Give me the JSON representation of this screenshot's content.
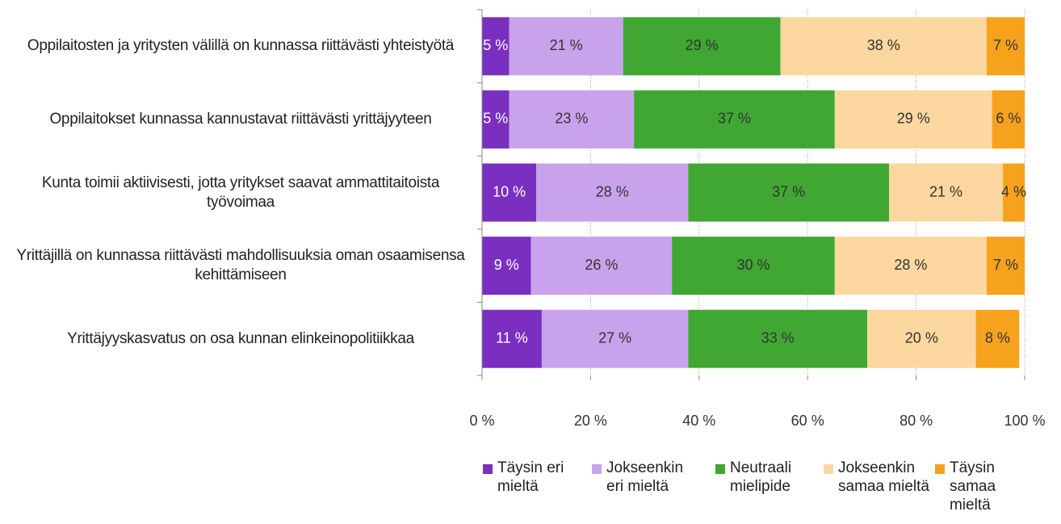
{
  "chart_data": {
    "type": "stacked-barh",
    "categories": [
      "Oppilaitosten ja yritysten välillä on kunnassa riittävästi yhteistyötä",
      "Oppilaitokset kunnassa kannustavat riittävästi yrittäjyyteen",
      "Kunta toimii aktiivisesti, jotta yritykset saavat ammattitaitoista työvoimaa",
      "Yrittäjillä on kunnassa riittävästi mahdollisuuksia oman osaamisensa kehittämiseen",
      "Yrittäjyyskasvatus on osa kunnan elinkeinopolitiikkaa"
    ],
    "series": [
      {
        "name": "Täysin eri mieltä",
        "color": "#7a2fc0",
        "values": [
          5,
          5,
          10,
          9,
          11
        ],
        "value_labels": [
          "5 %",
          "5 %",
          "10 %",
          "9 %",
          "11 %"
        ]
      },
      {
        "name": "Jokseenkin eri mieltä",
        "color": "#c8a2ea",
        "values": [
          21,
          23,
          28,
          26,
          27
        ],
        "value_labels": [
          "21 %",
          "23 %",
          "28 %",
          "26 %",
          "27 %"
        ]
      },
      {
        "name": "Neutraali mielipide",
        "color": "#40a733",
        "values": [
          29,
          37,
          37,
          30,
          33
        ],
        "value_labels": [
          "29 %",
          "37 %",
          "37 %",
          "30 %",
          "33 %"
        ]
      },
      {
        "name": "Jokseenkin samaa mieltä",
        "color": "#fcd79f",
        "values": [
          38,
          29,
          21,
          28,
          20
        ],
        "value_labels": [
          "38 %",
          "29 %",
          "21 %",
          "28 %",
          "20 %"
        ]
      },
      {
        "name": "Täysin samaa mieltä",
        "color": "#f6a21d",
        "values": [
          7,
          6,
          4,
          7,
          8
        ],
        "value_labels": [
          "7 %",
          "6 %",
          "4 %",
          "7 %",
          "8 %"
        ]
      }
    ],
    "xlim": [
      0,
      100
    ],
    "xticks": [
      {
        "value": 0,
        "label": "0 %"
      },
      {
        "value": 20,
        "label": "20 %"
      },
      {
        "value": 40,
        "label": "40 %"
      },
      {
        "value": 60,
        "label": "60 %"
      },
      {
        "value": 80,
        "label": "80 %"
      },
      {
        "value": 100,
        "label": "100 %"
      }
    ],
    "grid": true,
    "legend": "bottom"
  }
}
